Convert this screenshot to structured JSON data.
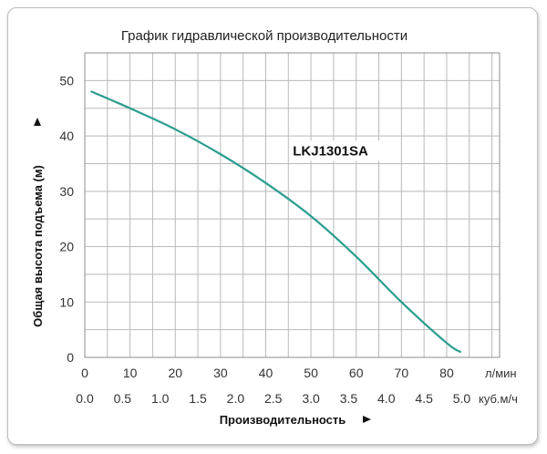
{
  "chart_data": {
    "type": "line",
    "title": "График гидравлической производительности",
    "xlabel": "Производительность",
    "ylabel": "Общая высота подъема (м)",
    "x_unit_primary": "л/мин",
    "x_unit_secondary": "куб.м/ч",
    "x_ticks_primary": [
      "0",
      "10",
      "20",
      "30",
      "40",
      "50",
      "60",
      "70",
      "80"
    ],
    "x_ticks_secondary": [
      "0.0",
      "0.5",
      "1.0",
      "1.5",
      "2.0",
      "2.5",
      "3.0",
      "3.5",
      "4.0",
      "4.5",
      "5.0"
    ],
    "y_ticks": [
      "0",
      "10",
      "20",
      "30",
      "40",
      "50"
    ],
    "xlim": [
      0,
      91.7
    ],
    "ylim": [
      0,
      55
    ],
    "grid": true,
    "series": [
      {
        "name": "LKJ1301SA",
        "color": "#2a9d8f",
        "x": [
          1.5,
          10,
          20,
          30,
          40,
          50,
          60,
          70,
          80,
          83
        ],
        "y": [
          48,
          45,
          41.2,
          36.7,
          31.5,
          25.5,
          18.2,
          10,
          2.6,
          1
        ]
      }
    ]
  }
}
